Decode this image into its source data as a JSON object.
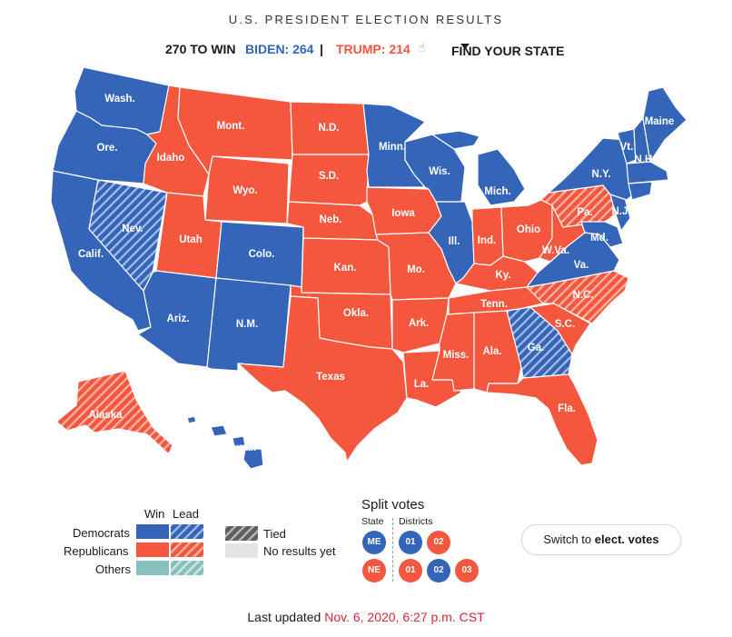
{
  "header": {
    "title": "U.S. PRESIDENT ELECTION RESULTS",
    "to_win": "270 TO WIN",
    "biden": "BIDEN: 264",
    "separator": "|",
    "trump": "TRUMP: 214",
    "find_state": "FIND YOUR STATE"
  },
  "colors": {
    "dem": "#3465b8",
    "rep": "#f4573d",
    "others": "#87c0bd",
    "tied": "#666666",
    "no_results": "#e4e4e6"
  },
  "states": {
    "wa": "Wash.",
    "or": "Ore.",
    "ca": "Calif.",
    "nv": "Nev.",
    "id": "Idaho",
    "mt": "Mont.",
    "wy": "Wyo.",
    "ut": "Utah",
    "co": "Colo.",
    "az": "Ariz.",
    "nm": "N.M.",
    "nd": "N.D.",
    "sd": "S.D.",
    "ne": "Neb.",
    "ks": "Kan.",
    "ok": "Okla.",
    "tx": "Texas",
    "mn": "Minn.",
    "ia": "Iowa",
    "mo": "Mo.",
    "ar": "Ark.",
    "la": "La.",
    "wi": "Wis.",
    "il": "Ill.",
    "mi": "Mich.",
    "in": "Ind.",
    "oh": "Ohio",
    "ky": "Ky.",
    "tn": "Tenn.",
    "ms": "Miss.",
    "al": "Ala.",
    "ga": "Ga.",
    "fl": "Fla.",
    "sc": "S.C.",
    "nc": "N.C.",
    "va": "Va.",
    "wv": "W.Va.",
    "pa": "Pa.",
    "ny": "N.Y.",
    "vt": "Vt.",
    "nh": "N.H.",
    "me": "Maine",
    "md": "Md.",
    "nj": "N.J.",
    "ak": "Alaska",
    "hi": "Hawaii"
  },
  "legend": {
    "win": "Win",
    "lead": "Lead",
    "democrats": "Democrats",
    "republicans": "Republicans",
    "others": "Others",
    "tied": "Tied",
    "no_results": "No results yet"
  },
  "split_votes": {
    "title": "Split votes",
    "state_label": "State",
    "districts_label": "Districts",
    "me": "ME",
    "ne": "NE",
    "me_districts": [
      "01",
      "02"
    ],
    "ne_districts": [
      "01",
      "02",
      "03"
    ]
  },
  "switch_button": {
    "prefix": "Switch to",
    "bold": "elect. votes"
  },
  "updated": {
    "label": "Last updated",
    "timestamp": "Nov. 6, 2020, 6:27 p.m. CST"
  }
}
